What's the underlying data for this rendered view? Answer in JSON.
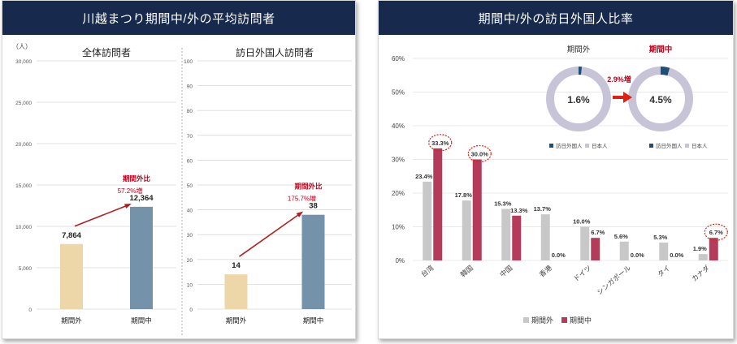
{
  "left_panel": {
    "header": "川越まつり期間中/外の平均訪問者",
    "unit_label": "（人）",
    "colors": {
      "outside": "#edd7a8",
      "during": "#7492aa",
      "arrow": "#b02020",
      "annotation": "#c0001a"
    }
  },
  "right_panel": {
    "header": "期間中/外の訪日外国人比率",
    "colors": {
      "outside": "#c8c8c8",
      "during": "#b53b5a",
      "donut_inner": "#c8c4d8",
      "donut_accent": "#1f4e79",
      "arrow": "#e02010"
    },
    "donut_outside": {
      "title": "期間外",
      "value_label": "1.6%",
      "value": 1.6
    },
    "donut_during": {
      "title": "期間中",
      "value_label": "4.5%",
      "value": 4.5
    },
    "donut_change_label": "2.9%増",
    "donut_legend": [
      "訪日外国人",
      "日本人"
    ],
    "legend": [
      "期間外",
      "期間中"
    ]
  },
  "chart_data": [
    {
      "type": "bar",
      "title": "全体訪問者",
      "categories": [
        "期間外",
        "期間中"
      ],
      "values": [
        7864,
        12364
      ],
      "value_labels": [
        "7,864",
        "12,364"
      ],
      "ylim": [
        0,
        30000
      ],
      "yticks": [
        0,
        5000,
        10000,
        15000,
        20000,
        25000,
        30000
      ],
      "ytick_labels": [
        "0",
        "5,000",
        "10,000",
        "15,000",
        "20,000",
        "25,000",
        "30,000"
      ],
      "annotation": [
        "期間外比",
        "57.2%増"
      ]
    },
    {
      "type": "bar",
      "title": "訪日外国人訪問者",
      "categories": [
        "期間外",
        "期間中"
      ],
      "values": [
        14,
        38
      ],
      "value_labels": [
        "14",
        "38"
      ],
      "ylim": [
        0,
        100
      ],
      "yticks": [
        0,
        10,
        20,
        30,
        40,
        50,
        60,
        70,
        80,
        90,
        100
      ],
      "ytick_labels": [
        "0",
        "10",
        "20",
        "30",
        "40",
        "50",
        "60",
        "70",
        "80",
        "90",
        "100"
      ],
      "annotation": [
        "期間外比",
        "175.7%増"
      ]
    },
    {
      "type": "bar",
      "title": "",
      "categories": [
        "台湾",
        "韓国",
        "中国",
        "香港",
        "ドイツ",
        "シンガポール",
        "タイ",
        "カナダ"
      ],
      "series": [
        {
          "name": "期間外",
          "values": [
            23.4,
            17.8,
            15.3,
            13.7,
            10.0,
            5.6,
            5.3,
            1.9
          ],
          "labels": [
            "23.4%",
            "17.8%",
            "15.3%",
            "13.7%",
            "10.0%",
            "5.6%",
            "5.3%",
            "1.9%"
          ]
        },
        {
          "name": "期間中",
          "values": [
            33.3,
            30.0,
            13.3,
            0.0,
            6.7,
            0.0,
            0.0,
            6.7
          ],
          "labels": [
            "33.3%",
            "30.0%",
            "13.3%",
            "0.0%",
            "6.7%",
            "0.0%",
            "0.0%",
            "6.7%"
          ]
        }
      ],
      "highlighted": [
        "台湾",
        "韓国",
        "カナダ"
      ],
      "ylim": [
        0,
        60
      ],
      "yticks": [
        0,
        10,
        20,
        30,
        40,
        50,
        60
      ],
      "ytick_labels": [
        "0%",
        "10%",
        "20%",
        "30%",
        "40%",
        "50%",
        "60%"
      ]
    }
  ]
}
